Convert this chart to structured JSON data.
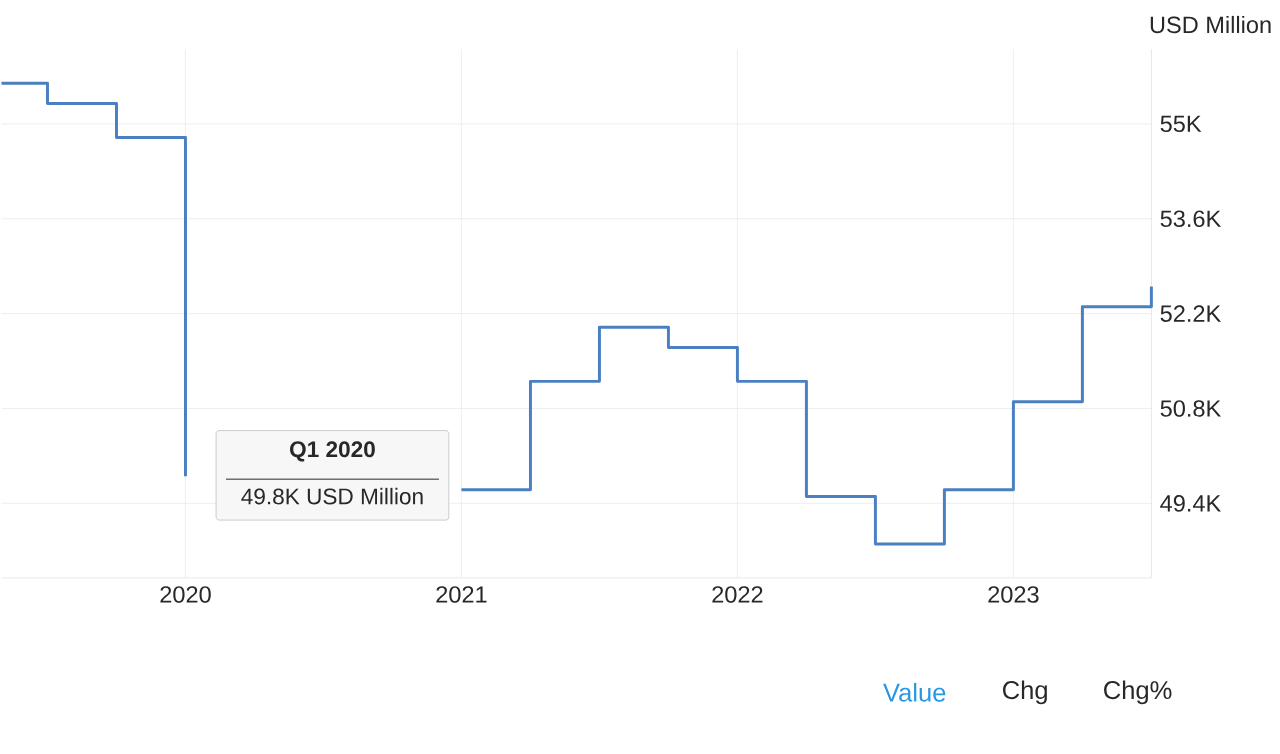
{
  "chart_data": {
    "type": "step",
    "ylabel": "USD Million",
    "color": "#4a7fc1",
    "x": [
      "2019-05",
      "2019-07",
      "2019-10",
      "2020-01",
      "2020-04",
      "2020-07",
      "2020-10",
      "2021-01",
      "2021-04",
      "2021-07",
      "2021-10",
      "2022-01",
      "2022-04",
      "2022-07",
      "2022-10",
      "2023-01",
      "2023-04",
      "2023-07"
    ],
    "values": [
      55.6,
      55.3,
      54.8,
      49.8,
      null,
      null,
      null,
      49.6,
      51.2,
      52.0,
      51.7,
      51.2,
      49.5,
      48.8,
      49.6,
      50.9,
      52.3,
      52.6
    ],
    "xlim": [
      "2019-05",
      "2023-07"
    ],
    "xticks": [
      "2020",
      "2021",
      "2022",
      "2023"
    ],
    "ylim": [
      48.3,
      56.1
    ],
    "yticks": [
      {
        "value": 49.4,
        "label": "49.4K"
      },
      {
        "value": 50.8,
        "label": "50.8K"
      },
      {
        "value": 52.2,
        "label": "52.2K"
      },
      {
        "value": 53.6,
        "label": "53.6K"
      },
      {
        "value": 55,
        "label": "55K"
      }
    ],
    "grid": true,
    "annotations": [
      "Q1 2020",
      "49.8K USD Million",
      "Value",
      "Chg",
      "Chg%"
    ]
  }
}
